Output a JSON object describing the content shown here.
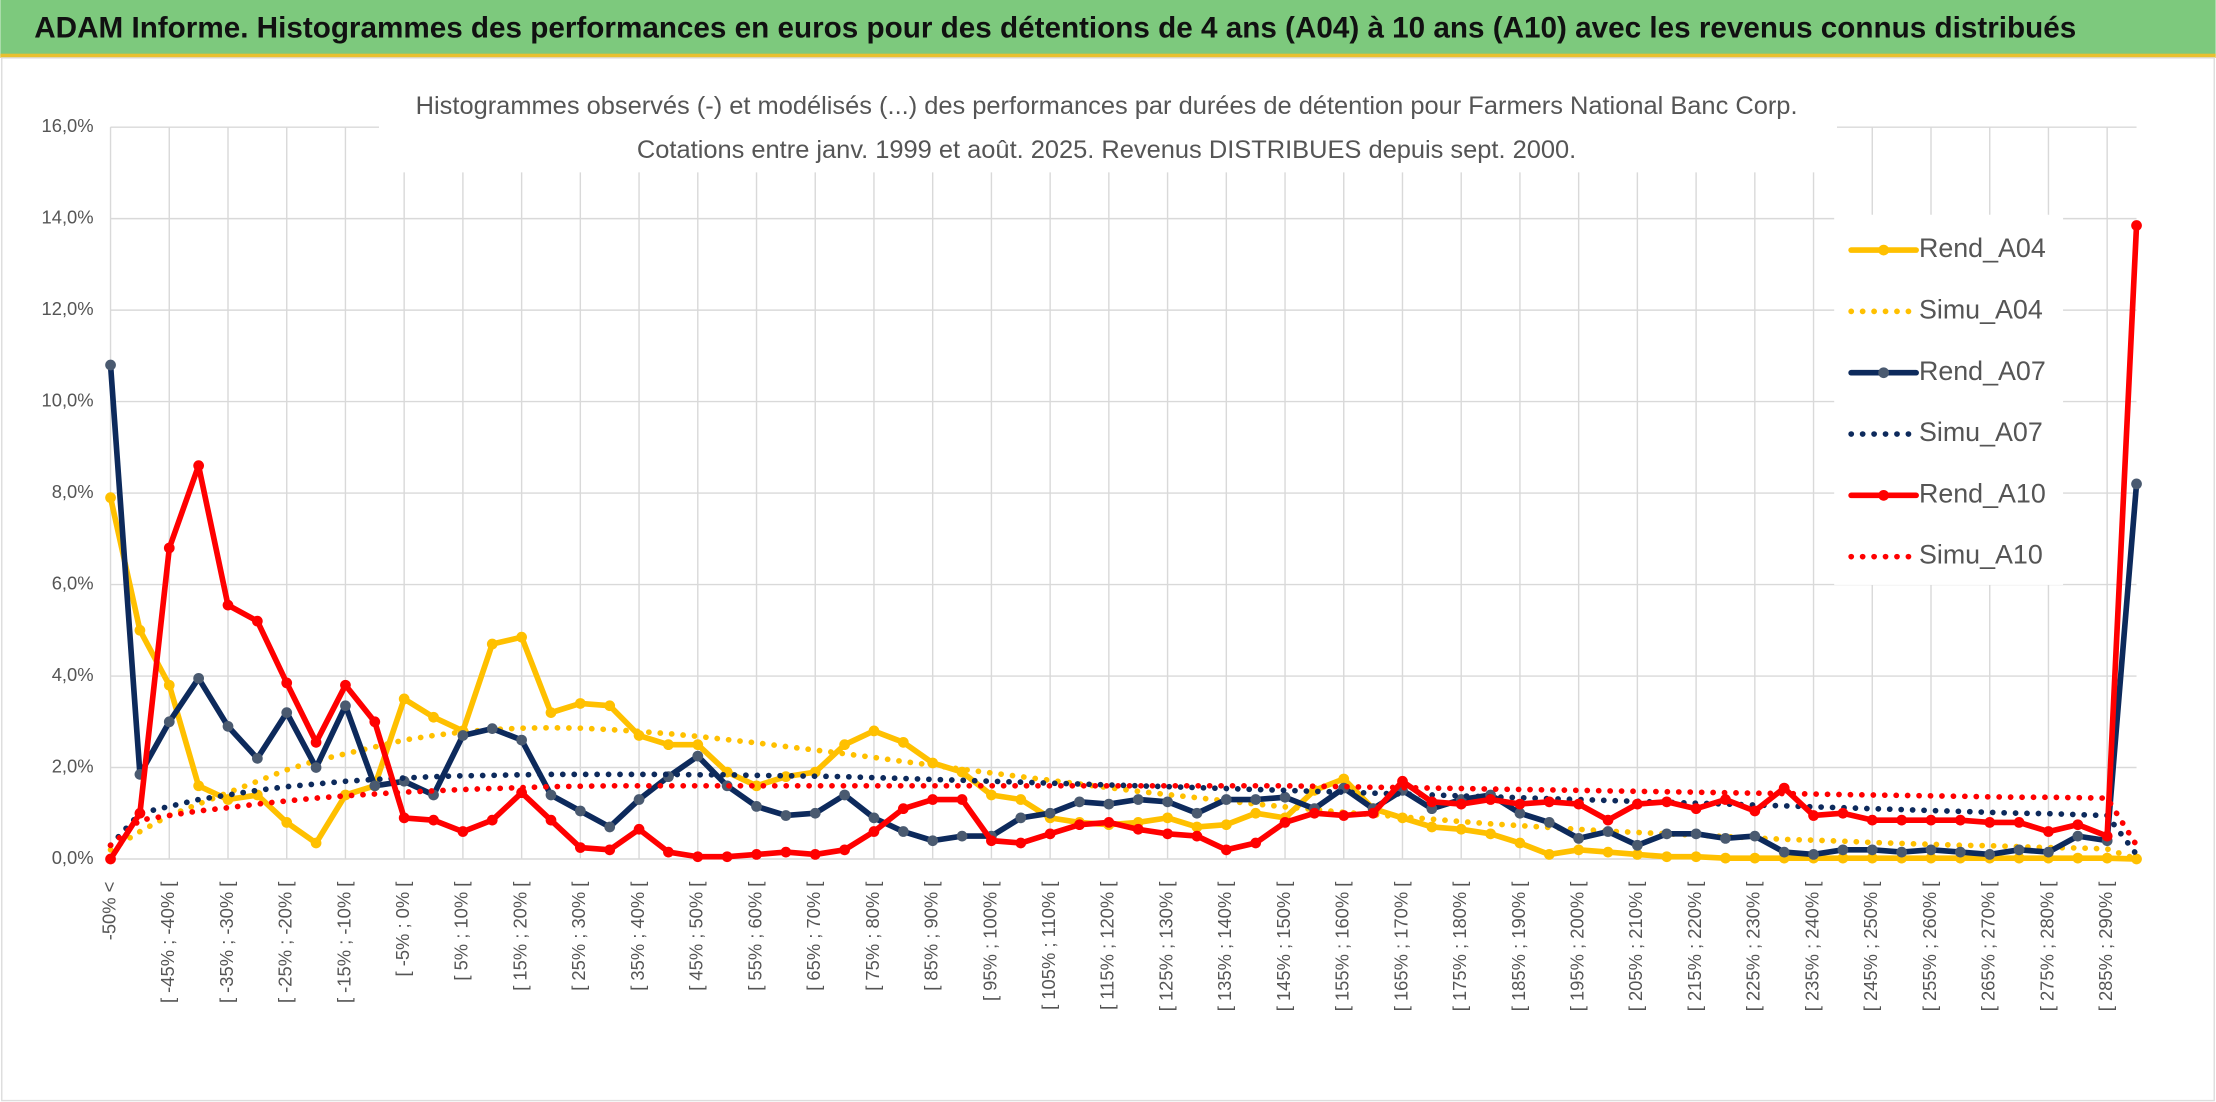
{
  "header": {
    "title": "ADAM Informe. Histogrammes des performances en euros pour des détentions de 4 ans (A04) à 10 ans (A10) avec les revenus connus distribués"
  },
  "chart_data": {
    "type": "line",
    "title": "Histogrammes observés (-) et modélisés (...) des performances par durées de détention pour Farmers National Banc Corp.",
    "subtitle": "Cotations entre janv. 1999 et août. 2025. Revenus DISTRIBUES depuis sept. 2000.",
    "categories": [
      "-50% <",
      null,
      "[ -45% ; -40% [",
      null,
      "[ -35% ; -30% [",
      null,
      "[ -25% ; -20% [",
      null,
      "[ -15% ; -10% [",
      null,
      "[ -5% ; 0% [",
      null,
      "[ 5% ; 10% [",
      null,
      "[ 15% ; 20% [",
      null,
      "[ 25% ; 30% [",
      null,
      "[ 35% ; 40% [",
      null,
      "[ 45% ; 50% [",
      null,
      "[ 55% ; 60% [",
      null,
      "[ 65% ; 70% [",
      null,
      "[ 75% ; 80% [",
      null,
      "[ 85% ; 90% [",
      null,
      "[ 95% ; 100% [",
      null,
      "[ 105% ; 110% [",
      null,
      "[ 115% ; 120% [",
      null,
      "[ 125% ; 130% [",
      null,
      "[ 135% ; 140% [",
      null,
      "[ 145% ; 150% [",
      null,
      "[ 155% ; 160% [",
      null,
      "[ 165% ; 170% [",
      null,
      "[ 175% ; 180% [",
      null,
      "[ 185% ; 190% [",
      null,
      "[ 195% ; 200% [",
      null,
      "[ 205% ; 210% [",
      null,
      "[ 215% ; 220% [",
      null,
      "[ 225% ; 230% [",
      null,
      "[ 235% ; 240% [",
      null,
      "[ 245% ; 250% [",
      null,
      "[ 255% ; 260% [",
      null,
      "[ 265% ; 270% [",
      null,
      "[ 275% ; 280% [",
      null,
      "[ 285% ; 290% [",
      null
    ],
    "series": [
      {
        "name": "Rend_A04",
        "color": "#ffc000",
        "line_style": "solid",
        "markers": true,
        "values": [
          7.9,
          5.0,
          3.8,
          1.6,
          1.3,
          1.4,
          0.8,
          0.35,
          1.4,
          1.6,
          3.5,
          3.1,
          2.8,
          4.7,
          4.85,
          3.2,
          3.4,
          3.35,
          2.7,
          2.5,
          2.5,
          1.9,
          1.6,
          1.8,
          1.9,
          2.5,
          2.8,
          2.55,
          2.1,
          1.9,
          1.4,
          1.3,
          0.9,
          0.8,
          0.75,
          0.8,
          0.9,
          0.7,
          0.75,
          1.0,
          0.9,
          1.5,
          1.75,
          1.1,
          0.9,
          0.7,
          0.65,
          0.55,
          0.35,
          0.1,
          0.2,
          0.15,
          0.1,
          0.05,
          0.05,
          0.02,
          0.02,
          0.02,
          0.02,
          0.02,
          0.02,
          0.02,
          0.02,
          0.02,
          0.02,
          0.02,
          0.02,
          0.02,
          0.02,
          0
        ]
      },
      {
        "name": "Simu_A04",
        "color": "#ffc000",
        "line_style": "dotted",
        "markers": false,
        "values": [
          0.2,
          0.6,
          0.95,
          1.2,
          1.45,
          1.7,
          1.95,
          2.15,
          2.3,
          2.45,
          2.6,
          2.7,
          2.78,
          2.83,
          2.86,
          2.87,
          2.86,
          2.83,
          2.79,
          2.74,
          2.68,
          2.61,
          2.54,
          2.46,
          2.38,
          2.3,
          2.22,
          2.13,
          2.05,
          1.96,
          1.88,
          1.8,
          1.72,
          1.64,
          1.56,
          1.48,
          1.41,
          1.34,
          1.27,
          1.2,
          1.14,
          1.08,
          1.02,
          0.97,
          0.92,
          0.87,
          0.82,
          0.77,
          0.73,
          0.69,
          0.65,
          0.61,
          0.58,
          0.55,
          0.52,
          0.49,
          0.46,
          0.43,
          0.41,
          0.39,
          0.36,
          0.34,
          0.32,
          0.3,
          0.29,
          0.27,
          0.25,
          0.24,
          0.22,
          0
        ]
      },
      {
        "name": "Rend_A07",
        "color": "#0d2a5c",
        "line_style": "solid",
        "markers": true,
        "values": [
          10.8,
          1.85,
          3.0,
          3.95,
          2.9,
          2.2,
          3.2,
          2.0,
          3.35,
          1.6,
          1.7,
          1.4,
          2.7,
          2.85,
          2.6,
          1.4,
          1.05,
          0.7,
          1.3,
          1.8,
          2.25,
          1.6,
          1.15,
          0.95,
          1.0,
          1.4,
          0.9,
          0.6,
          0.4,
          0.5,
          0.5,
          0.9,
          1.0,
          1.25,
          1.2,
          1.3,
          1.25,
          1.0,
          1.3,
          1.3,
          1.35,
          1.1,
          1.55,
          1.1,
          1.5,
          1.1,
          1.3,
          1.4,
          1.0,
          0.8,
          0.45,
          0.6,
          0.3,
          0.55,
          0.55,
          0.45,
          0.5,
          0.15,
          0.1,
          0.2,
          0.2,
          0.15,
          0.2,
          0.15,
          0.1,
          0.2,
          0.15,
          0.5,
          0.4,
          8.2
        ]
      },
      {
        "name": "Simu_A07",
        "color": "#0d2a5c",
        "line_style": "dotted",
        "markers": false,
        "values": [
          0.3,
          1.0,
          1.15,
          1.3,
          1.4,
          1.5,
          1.58,
          1.64,
          1.7,
          1.74,
          1.77,
          1.8,
          1.82,
          1.83,
          1.84,
          1.85,
          1.85,
          1.85,
          1.85,
          1.85,
          1.84,
          1.84,
          1.83,
          1.82,
          1.81,
          1.8,
          1.78,
          1.76,
          1.74,
          1.72,
          1.7,
          1.68,
          1.66,
          1.64,
          1.62,
          1.6,
          1.58,
          1.56,
          1.54,
          1.52,
          1.5,
          1.48,
          1.46,
          1.44,
          1.42,
          1.4,
          1.38,
          1.36,
          1.34,
          1.32,
          1.3,
          1.28,
          1.26,
          1.24,
          1.22,
          1.2,
          1.18,
          1.16,
          1.14,
          1.12,
          1.1,
          1.08,
          1.06,
          1.04,
          1.02,
          1.0,
          0.99,
          0.97,
          0.95,
          0.1
        ]
      },
      {
        "name": "Rend_A10",
        "color": "#ff0000",
        "line_style": "solid",
        "markers": true,
        "values": [
          0,
          1.0,
          6.8,
          8.6,
          5.55,
          5.2,
          3.85,
          2.55,
          3.8,
          3.0,
          0.9,
          0.85,
          0.6,
          0.85,
          1.45,
          0.85,
          0.25,
          0.2,
          0.65,
          0.15,
          0.05,
          0.05,
          0.1,
          0.15,
          0.1,
          0.2,
          0.6,
          1.1,
          1.3,
          1.3,
          0.4,
          0.35,
          0.55,
          0.75,
          0.8,
          0.65,
          0.55,
          0.5,
          0.2,
          0.35,
          0.8,
          1.0,
          0.95,
          1.0,
          1.7,
          1.25,
          1.2,
          1.3,
          1.2,
          1.25,
          1.2,
          0.85,
          1.2,
          1.25,
          1.1,
          1.3,
          1.05,
          1.55,
          0.95,
          1.0,
          0.85,
          0.85,
          0.85,
          0.85,
          0.8,
          0.8,
          0.6,
          0.75,
          0.5,
          13.85
        ]
      },
      {
        "name": "Simu_A10",
        "color": "#ff0000",
        "line_style": "dotted",
        "markers": false,
        "values": [
          0.3,
          0.85,
          0.95,
          1.05,
          1.12,
          1.2,
          1.27,
          1.33,
          1.38,
          1.42,
          1.46,
          1.49,
          1.52,
          1.54,
          1.56,
          1.58,
          1.59,
          1.6,
          1.6,
          1.6,
          1.6,
          1.6,
          1.6,
          1.6,
          1.6,
          1.6,
          1.6,
          1.6,
          1.6,
          1.6,
          1.6,
          1.6,
          1.6,
          1.6,
          1.6,
          1.6,
          1.6,
          1.6,
          1.6,
          1.6,
          1.6,
          1.59,
          1.58,
          1.57,
          1.56,
          1.55,
          1.54,
          1.53,
          1.52,
          1.51,
          1.5,
          1.49,
          1.48,
          1.47,
          1.46,
          1.45,
          1.44,
          1.43,
          1.42,
          1.41,
          1.4,
          1.39,
          1.38,
          1.37,
          1.36,
          1.35,
          1.35,
          1.34,
          1.33,
          0.3
        ]
      }
    ],
    "ylim": [
      0,
      16
    ],
    "yticks": [
      {
        "value": 0,
        "label": "0,0%"
      },
      {
        "value": 2,
        "label": "2,0%"
      },
      {
        "value": 4,
        "label": "4,0%"
      },
      {
        "value": 6,
        "label": "6,0%"
      },
      {
        "value": 8,
        "label": "8,0%"
      },
      {
        "value": 10,
        "label": "10,0%"
      },
      {
        "value": 12,
        "label": "12,0%"
      },
      {
        "value": 14,
        "label": "14,0%"
      },
      {
        "value": 16,
        "label": "16,0%"
      }
    ],
    "grid": true,
    "legend": "upper right"
  }
}
